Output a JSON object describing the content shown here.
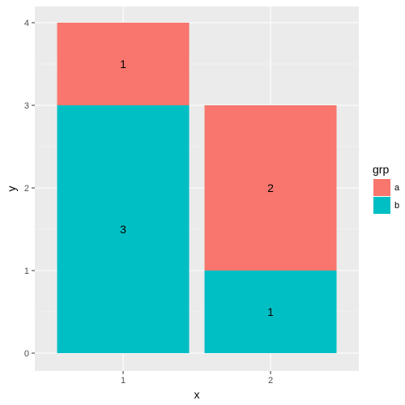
{
  "chart_data": {
    "type": "bar",
    "stacked": true,
    "categories": [
      "1",
      "2"
    ],
    "series": [
      {
        "name": "b",
        "values": [
          3,
          1
        ],
        "color": "#00BFC4"
      },
      {
        "name": "a",
        "values": [
          1,
          2
        ],
        "color": "#F8766D"
      }
    ],
    "xlabel": "x",
    "ylabel": "y",
    "ylim": [
      0,
      4
    ],
    "yticks": [
      "0",
      "1",
      "2",
      "3",
      "4"
    ],
    "grid": true,
    "panel_color": "#EBEBEB",
    "legend": {
      "title": "grp",
      "placement": "right",
      "entries": [
        {
          "label": "a",
          "color": "#F8766D"
        },
        {
          "label": "b",
          "color": "#00BFC4"
        }
      ]
    }
  }
}
